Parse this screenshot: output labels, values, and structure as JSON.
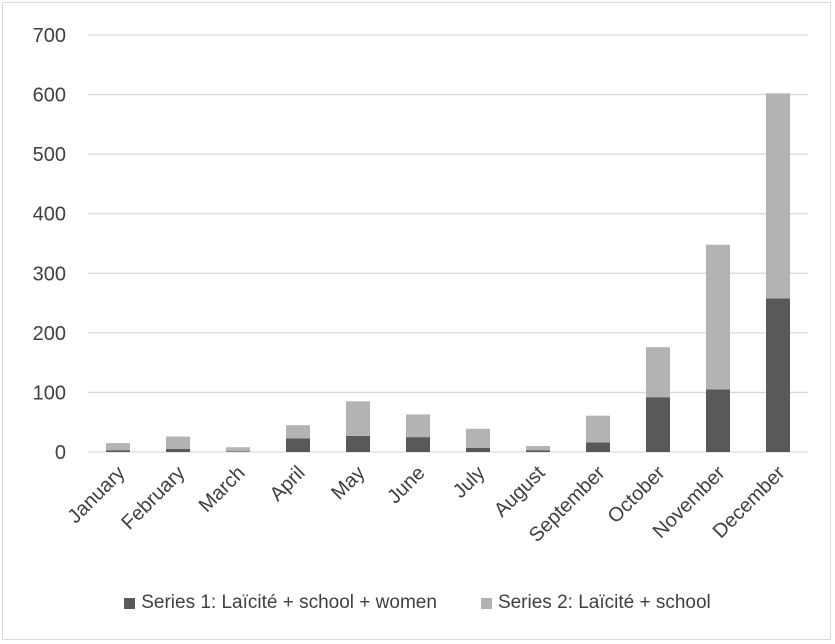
{
  "chart_data": {
    "type": "bar",
    "stacked": true,
    "categories": [
      "January",
      "February",
      "March",
      "April",
      "May",
      "June",
      "July",
      "August",
      "September",
      "October",
      "November",
      "December"
    ],
    "series": [
      {
        "name": "Series 1: Laïcité + school + women",
        "color": "#595959",
        "values": [
          3,
          5,
          1,
          23,
          27,
          25,
          7,
          3,
          16,
          92,
          105,
          258
        ]
      },
      {
        "name": "Series 2: Laïcité + school",
        "color": "#b3b3b3",
        "values": [
          12,
          21,
          7,
          22,
          58,
          38,
          32,
          7,
          45,
          84,
          243,
          344
        ]
      }
    ],
    "ylim": [
      0,
      700
    ],
    "yticks": [
      "0",
      "100",
      "200",
      "300",
      "400",
      "500",
      "600",
      "700"
    ],
    "grid": true,
    "legend": "bottom"
  }
}
